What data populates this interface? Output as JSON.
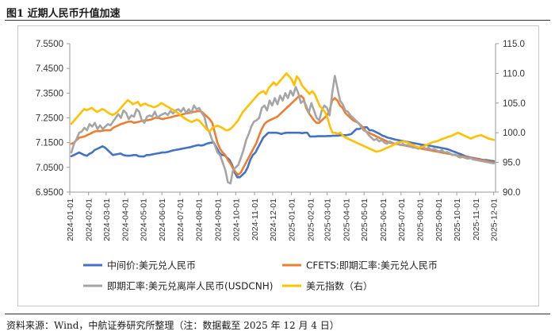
{
  "figure": {
    "title": "图1   近期人民币升值加速",
    "source": "资料来源：Wind，中航证券研究所整理（注：数据截至 2025 年 12 月 4 日）"
  },
  "chart_data": {
    "type": "line",
    "title": "近期人民币升值加速",
    "x_ticks": [
      "2024-01-01",
      "2024-02-01",
      "2024-03-01",
      "2024-04-01",
      "2024-05-01",
      "2024-06-01",
      "2024-07-01",
      "2024-08-01",
      "2024-09-01",
      "2024-10-01",
      "2024-11-01",
      "2024-12-01",
      "2025-01-01",
      "2025-02-01",
      "2025-03-01",
      "2025-04-01",
      "2025-05-01",
      "2025-06-01",
      "2025-07-01",
      "2025-08-01",
      "2025-09-01",
      "2025-10-01",
      "2025-11-01",
      "2025-12-01"
    ],
    "x_end": "2025-12-04",
    "y_left": {
      "ticks": [
        "6.9500",
        "7.0500",
        "7.1500",
        "7.2500",
        "7.3500",
        "7.4500",
        "7.5500"
      ],
      "lim": [
        6.95,
        7.55
      ]
    },
    "y_right": {
      "ticks": [
        "90.0",
        "95.0",
        "100.0",
        "105.0",
        "110.0",
        "115.0"
      ],
      "lim": [
        90,
        115
      ]
    },
    "legend_position": "bottom",
    "series": [
      {
        "name": "中间价:美元兑人民币",
        "axis": "left",
        "color": "#4472C4",
        "values": [
          7.095,
          7.1,
          7.105,
          7.11,
          7.105,
          7.1,
          7.097,
          7.105,
          7.11,
          7.12,
          7.125,
          7.13,
          7.135,
          7.13,
          7.12,
          7.11,
          7.1,
          7.102,
          7.104,
          7.106,
          7.1,
          7.098,
          7.097,
          7.098,
          7.1,
          7.1,
          7.095,
          7.094,
          7.094,
          7.1,
          7.1,
          7.102,
          7.104,
          7.106,
          7.108,
          7.11,
          7.11,
          7.112,
          7.115,
          7.118,
          7.12,
          7.122,
          7.124,
          7.126,
          7.128,
          7.13,
          7.132,
          7.135,
          7.138,
          7.14,
          7.138,
          7.14,
          7.145,
          7.148,
          7.15,
          7.15,
          7.13,
          7.11,
          7.1,
          7.1,
          7.09,
          7.08,
          7.06,
          7.03,
          7.01,
          7.01,
          7.02,
          7.03,
          7.05,
          7.08,
          7.1,
          7.11,
          7.13,
          7.15,
          7.17,
          7.18,
          7.19,
          7.19,
          7.19,
          7.19,
          7.188,
          7.185,
          7.188,
          7.19,
          7.19,
          7.19,
          7.19,
          7.19,
          7.19,
          7.188,
          7.19,
          7.19,
          7.175,
          7.175,
          7.175,
          7.176,
          7.176,
          7.176,
          7.176,
          7.177,
          7.177,
          7.178,
          7.178,
          7.178,
          7.18,
          7.18,
          7.18,
          7.182,
          7.185,
          7.195,
          7.205,
          7.205,
          7.21,
          7.212,
          7.212,
          7.2,
          7.2,
          7.195,
          7.19,
          7.185,
          7.178,
          7.175,
          7.17,
          7.168,
          7.165,
          7.162,
          7.16,
          7.158,
          7.156,
          7.154,
          7.152,
          7.15,
          7.148,
          7.146,
          7.144,
          7.142,
          7.14,
          7.14,
          7.138,
          7.136,
          7.134,
          7.132,
          7.13,
          7.128,
          7.126,
          7.124,
          7.12,
          7.116,
          7.112,
          7.108,
          7.104,
          7.1,
          7.095,
          7.092,
          7.09,
          7.088,
          7.086,
          7.084,
          7.082,
          7.08,
          7.08,
          7.078,
          7.076,
          7.075
        ]
      },
      {
        "name": "CFETS:即期汇率:美元兑人民币",
        "axis": "left",
        "color": "#ED7D31",
        "values": [
          7.145,
          7.15,
          7.16,
          7.17,
          7.172,
          7.175,
          7.18,
          7.185,
          7.19,
          7.195,
          7.197,
          7.196,
          7.198,
          7.2,
          7.2,
          7.2,
          7.21,
          7.215,
          7.22,
          7.225,
          7.228,
          7.232,
          7.235,
          7.235,
          7.23,
          7.232,
          7.235,
          7.238,
          7.24,
          7.24,
          7.242,
          7.245,
          7.25,
          7.25,
          7.248,
          7.245,
          7.248,
          7.25,
          7.252,
          7.255,
          7.258,
          7.26,
          7.262,
          7.265,
          7.268,
          7.27,
          7.272,
          7.274,
          7.276,
          7.278,
          7.275,
          7.265,
          7.255,
          7.245,
          7.23,
          7.19,
          7.15,
          7.125,
          7.11,
          7.1,
          7.08,
          7.065,
          7.045,
          7.03,
          7.02,
          7.03,
          7.05,
          7.07,
          7.09,
          7.11,
          7.13,
          7.15,
          7.18,
          7.205,
          7.225,
          7.235,
          7.24,
          7.245,
          7.25,
          7.255,
          7.265,
          7.275,
          7.285,
          7.295,
          7.305,
          7.315,
          7.325,
          7.335,
          7.34,
          7.33,
          7.29,
          7.27,
          7.255,
          7.24,
          7.23,
          7.23,
          7.24,
          7.25,
          7.26,
          7.28,
          7.32,
          7.33,
          7.32,
          7.3,
          7.29,
          7.27,
          7.26,
          7.25,
          7.24,
          7.235,
          7.23,
          7.22,
          7.21,
          7.195,
          7.19,
          7.185,
          7.18,
          7.175,
          7.17,
          7.165,
          7.16,
          7.155,
          7.15,
          7.148,
          7.146,
          7.144,
          7.142,
          7.14,
          7.138,
          7.136,
          7.134,
          7.132,
          7.13,
          7.128,
          7.126,
          7.124,
          7.122,
          7.12,
          7.118,
          7.116,
          7.114,
          7.112,
          7.11,
          7.108,
          7.106,
          7.104,
          7.102,
          7.1,
          7.098,
          7.096,
          7.094,
          7.092,
          7.09,
          7.088,
          7.086,
          7.084,
          7.082,
          7.08,
          7.078,
          7.076,
          7.074,
          7.072,
          7.07
        ]
      },
      {
        "name": "即期汇率:美元兑离岸人民币(USDCNH)",
        "axis": "left",
        "color": "#A5A5A5",
        "values": [
          7.11,
          7.145,
          7.165,
          7.19,
          7.195,
          7.21,
          7.2,
          7.225,
          7.215,
          7.23,
          7.205,
          7.22,
          7.205,
          7.215,
          7.225,
          7.22,
          7.235,
          7.25,
          7.265,
          7.25,
          7.28,
          7.27,
          7.245,
          7.26,
          7.255,
          7.285,
          7.275,
          7.24,
          7.23,
          7.255,
          7.26,
          7.255,
          7.275,
          7.25,
          7.26,
          7.265,
          7.27,
          7.262,
          7.278,
          7.268,
          7.28,
          7.285,
          7.275,
          7.29,
          7.27,
          7.285,
          7.27,
          7.3,
          7.285,
          7.29,
          7.27,
          7.255,
          7.21,
          7.19,
          7.16,
          7.14,
          7.11,
          7.1,
          7.07,
          7.04,
          6.99,
          6.985,
          7.04,
          7.05,
          7.06,
          7.09,
          7.12,
          7.16,
          7.185,
          7.215,
          7.235,
          7.24,
          7.25,
          7.29,
          7.3,
          7.28,
          7.32,
          7.3,
          7.33,
          7.305,
          7.34,
          7.32,
          7.35,
          7.33,
          7.36,
          7.34,
          7.375,
          7.35,
          7.31,
          7.32,
          7.3,
          7.27,
          7.31,
          7.28,
          7.25,
          7.24,
          7.28,
          7.3,
          7.29,
          7.26,
          7.35,
          7.42,
          7.37,
          7.32,
          7.305,
          7.28,
          7.275,
          7.26,
          7.25,
          7.24,
          7.23,
          7.215,
          7.2,
          7.195,
          7.18,
          7.17,
          7.16,
          7.165,
          7.155,
          7.16,
          7.15,
          7.145,
          7.155,
          7.15,
          7.145,
          7.15,
          7.14,
          7.145,
          7.14,
          7.14,
          7.135,
          7.13,
          7.13,
          7.125,
          7.135,
          7.13,
          7.125,
          7.13,
          7.12,
          7.125,
          7.118,
          7.115,
          7.12,
          7.11,
          7.112,
          7.108,
          7.1,
          7.102,
          7.095,
          7.09,
          7.092,
          7.088,
          7.085,
          7.088,
          7.082,
          7.08,
          7.078,
          7.076,
          7.074,
          7.072,
          7.07,
          7.068,
          7.066
        ]
      },
      {
        "name": "美元指数（右）",
        "axis": "right",
        "color": "#FFC000",
        "values": [
          101.5,
          102.0,
          102.5,
          103.0,
          103.5,
          104.0,
          103.8,
          104.0,
          104.2,
          103.8,
          103.5,
          103.7,
          104.0,
          103.8,
          103.5,
          103.2,
          103.0,
          103.2,
          103.5,
          104.0,
          104.5,
          105.0,
          105.5,
          105.2,
          104.8,
          105.0,
          105.2,
          104.5,
          104.8,
          104.9,
          104.6,
          104.5,
          104.3,
          104.4,
          104.6,
          105.0,
          104.8,
          104.5,
          104.3,
          104.0,
          103.8,
          103.5,
          103.2,
          102.8,
          102.5,
          102.2,
          102.0,
          101.8,
          102.0,
          102.2,
          102.0,
          101.5,
          101.0,
          100.5,
          100.2,
          100.8,
          101.0,
          101.2,
          101.0,
          100.8,
          100.5,
          100.4,
          100.6,
          101.0,
          101.5,
          102.0,
          102.8,
          103.5,
          104.0,
          104.5,
          105.0,
          105.5,
          106.0,
          106.5,
          106.8,
          107.0,
          106.5,
          107.5,
          108.0,
          108.5,
          108.0,
          108.5,
          109.0,
          109.5,
          110.0,
          109.5,
          109.0,
          108.0,
          109.5,
          109.0,
          108.0,
          107.5,
          107.0,
          106.5,
          107.0,
          106.5,
          105.5,
          104.5,
          104.0,
          103.5,
          102.5,
          101.0,
          100.0,
          100.0,
          99.8,
          100.0,
          99.5,
          99.2,
          99.0,
          98.8,
          98.6,
          98.4,
          98.2,
          98.0,
          97.8,
          97.6,
          97.4,
          97.2,
          97.0,
          96.8,
          96.9,
          97.0,
          97.2,
          97.4,
          97.6,
          97.8,
          98.0,
          98.2,
          98.4,
          98.5,
          98.5,
          98.4,
          98.2,
          98.0,
          97.8,
          97.6,
          97.5,
          97.6,
          97.8,
          98.0,
          98.2,
          98.4,
          98.5,
          98.6,
          98.8,
          99.0,
          99.1,
          99.3,
          99.4,
          99.6,
          99.8,
          100.0,
          99.8,
          99.6,
          99.4,
          99.2,
          99.0,
          99.2,
          99.4,
          99.5,
          99.6,
          99.4,
          99.2,
          99.0,
          98.9,
          98.8
        ]
      }
    ]
  }
}
